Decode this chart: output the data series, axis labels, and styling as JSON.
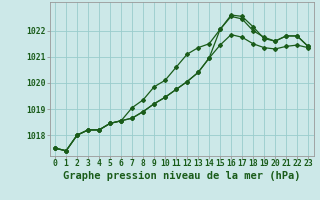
{
  "title": "Graphe pression niveau de la mer (hPa)",
  "bg_color": "#cce8e8",
  "grid_color": "#99cccc",
  "line_color": "#1a5c1a",
  "marker_color": "#1a5c1a",
  "x_ticks": [
    0,
    1,
    2,
    3,
    4,
    5,
    6,
    7,
    8,
    9,
    10,
    11,
    12,
    13,
    14,
    15,
    16,
    17,
    18,
    19,
    20,
    21,
    22,
    23
  ],
  "ylim": [
    1017.2,
    1023.1
  ],
  "y_ticks": [
    1018,
    1019,
    1020,
    1021,
    1022
  ],
  "line1_dotted": [
    1017.5,
    1017.4,
    1018.0,
    1018.2,
    1018.2,
    1018.45,
    1018.55,
    1018.65,
    1018.9,
    1019.2,
    1019.45,
    1019.75,
    1020.05,
    1020.4,
    1020.95,
    1021.45,
    1021.85,
    1021.75,
    1021.5,
    1021.35,
    1021.3,
    1021.4,
    1021.45,
    1021.35
  ],
  "line2_peak": [
    1017.5,
    1017.4,
    1018.0,
    1018.2,
    1018.2,
    1018.45,
    1018.55,
    1019.05,
    1019.35,
    1019.85,
    1020.1,
    1020.6,
    1021.1,
    1021.35,
    1021.5,
    1022.05,
    1022.6,
    1022.55,
    1022.15,
    1021.7,
    1021.6,
    1021.8,
    1021.8,
    1021.4
  ],
  "line3_upper": [
    1017.5,
    1017.4,
    1018.0,
    1018.2,
    1018.2,
    1018.45,
    1018.55,
    1018.65,
    1018.9,
    1019.2,
    1019.45,
    1019.75,
    1020.05,
    1020.4,
    1020.95,
    1022.05,
    1022.55,
    1022.45,
    1022.0,
    1021.75,
    1021.6,
    1021.8,
    1021.8,
    1021.4
  ],
  "title_fontsize": 7.5,
  "tick_fontsize": 5.8
}
